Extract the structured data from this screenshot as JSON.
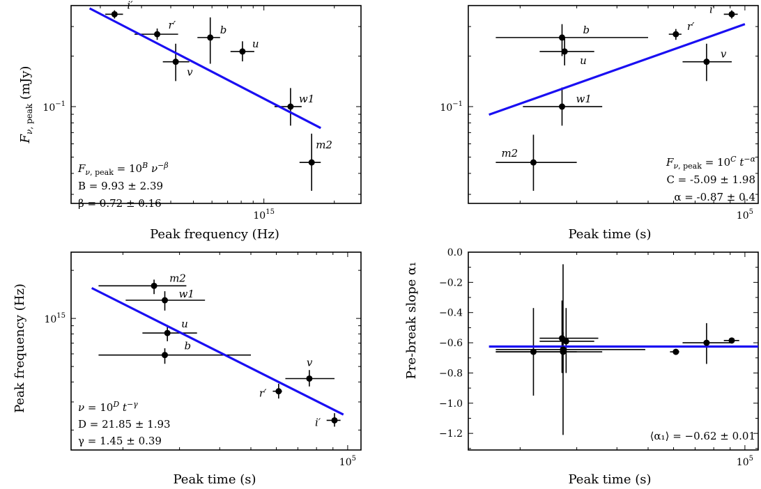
{
  "chart_data": [
    {
      "type": "scatter",
      "xlabel": "Peak frequency (Hz)",
      "ylabel": "F_{ν, peak} (mJy)",
      "xscale": "log",
      "yscale": "log",
      "xlim": [
        150000000000000.0,
        2600000000000000.0
      ],
      "ylim": [
        0.0265,
        0.4
      ],
      "xticks": [
        {
          "v": 1000000000000000.0,
          "label": "10^15"
        }
      ],
      "yticks": [
        {
          "v": 0.1,
          "label": "10^-1"
        }
      ],
      "points": [
        {
          "label": "i′",
          "x": 230000000000000.0,
          "y": 0.355,
          "xlo": 210000000000000.0,
          "xhi": 250000000000000.0,
          "ylo": 0.335,
          "yhi": 0.375
        },
        {
          "label": "r′",
          "x": 350000000000000.0,
          "y": 0.27,
          "xlo": 280000000000000.0,
          "xhi": 430000000000000.0,
          "ylo": 0.25,
          "yhi": 0.292
        },
        {
          "label": "v",
          "x": 420000000000000.0,
          "y": 0.185,
          "xlo": 370000000000000.0,
          "xhi": 480000000000000.0,
          "ylo": 0.142,
          "yhi": 0.237
        },
        {
          "label": "b",
          "x": 590000000000000.0,
          "y": 0.258,
          "xlo": 520000000000000.0,
          "xhi": 650000000000000.0,
          "ylo": 0.18,
          "yhi": 0.34
        },
        {
          "label": "u",
          "x": 810000000000000.0,
          "y": 0.213,
          "xlo": 720000000000000.0,
          "xhi": 910000000000000.0,
          "ylo": 0.186,
          "yhi": 0.245
        },
        {
          "label": "w1",
          "x": 1300000000000000.0,
          "y": 0.1,
          "xlo": 1110000000000000.0,
          "xhi": 1450000000000000.0,
          "ylo": 0.077,
          "yhi": 0.129
        },
        {
          "label": "m2",
          "x": 1600000000000000.0,
          "y": 0.0465,
          "xlo": 1420000000000000.0,
          "xhi": 1750000000000000.0,
          "ylo": 0.0315,
          "yhi": 0.069
        }
      ],
      "fit": {
        "x": [
          180000000000000.0,
          1750000000000000.0
        ],
        "y": [
          0.385,
          0.0745
        ]
      },
      "annotations": [
        "F_{ν, peak} = 10^B ν^{-β}",
        "B = 9.93 ± 2.39",
        "β = 0.72 ± 0.16"
      ]
    },
    {
      "type": "scatter",
      "xlabel": "Peak time (s)",
      "ylabel": "",
      "xscale": "log",
      "yscale": "log",
      "xlim": [
        13800,
        110000
      ],
      "ylim": [
        0.0265,
        0.4
      ],
      "xticks": [
        {
          "v": 100000,
          "label": "10^5"
        }
      ],
      "yticks": [
        {
          "v": 0.1,
          "label": "10^-1"
        }
      ],
      "points": [
        {
          "label": "b",
          "x": 27000,
          "y": 0.258,
          "xlo": 16800,
          "xhi": 50000,
          "ylo": 0.2,
          "yhi": 0.31
        },
        {
          "label": "u",
          "x": 27500,
          "y": 0.213,
          "xlo": 23000,
          "xhi": 34000,
          "ylo": 0.176,
          "yhi": 0.257
        },
        {
          "label": "w1",
          "x": 27000,
          "y": 0.1,
          "xlo": 20400,
          "xhi": 36000,
          "ylo": 0.077,
          "yhi": 0.13
        },
        {
          "label": "m2",
          "x": 22000,
          "y": 0.0465,
          "xlo": 16800,
          "xhi": 30000,
          "ylo": 0.0315,
          "yhi": 0.068
        },
        {
          "label": "r′",
          "x": 61000,
          "y": 0.27,
          "xlo": 58000,
          "xhi": 63500,
          "ylo": 0.25,
          "yhi": 0.29
        },
        {
          "label": "v",
          "x": 76000,
          "y": 0.185,
          "xlo": 64000,
          "xhi": 91000,
          "ylo": 0.142,
          "yhi": 0.237
        },
        {
          "label": "i′",
          "x": 91000,
          "y": 0.355,
          "xlo": 86000,
          "xhi": 95000,
          "ylo": 0.335,
          "yhi": 0.375
        }
      ],
      "fit": {
        "x": [
          16000,
          100000
        ],
        "y": [
          0.0895,
          0.31
        ]
      },
      "annotations": [
        "F_{ν, peak} = 10^C t^{-α}",
        "C = -5.09 ± 1.98",
        "α = -0.87 ± 0.4"
      ]
    },
    {
      "type": "scatter",
      "xlabel": "Peak time (s)",
      "ylabel": "Peak frequency (Hz)",
      "xscale": "log",
      "yscale": "log",
      "xlim": [
        13800,
        110000
      ],
      "ylim": [
        150000000000000.0,
        2600000000000000.0
      ],
      "xticks": [
        {
          "v": 100000,
          "label": "10^5"
        }
      ],
      "yticks": [
        {
          "v": 1000000000000000.0,
          "label": "10^15"
        }
      ],
      "points": [
        {
          "label": "m2",
          "x": 25000,
          "y": 1600000000000000.0,
          "xlo": 16800,
          "xhi": 31500,
          "ylo": 1420000000000000.0,
          "yhi": 1750000000000000.0
        },
        {
          "label": "w1",
          "x": 27000,
          "y": 1300000000000000.0,
          "xlo": 20400,
          "xhi": 36000,
          "ylo": 1120000000000000.0,
          "yhi": 1480000000000000.0
        },
        {
          "label": "u",
          "x": 27500,
          "y": 810000000000000.0,
          "xlo": 23000,
          "xhi": 34000,
          "ylo": 720000000000000.0,
          "yhi": 910000000000000.0
        },
        {
          "label": "b",
          "x": 27000,
          "y": 590000000000000.0,
          "xlo": 16800,
          "xhi": 50000,
          "ylo": 520000000000000.0,
          "yhi": 650000000000000.0
        },
        {
          "label": "v",
          "x": 76000,
          "y": 420000000000000.0,
          "xlo": 64000,
          "xhi": 91000,
          "ylo": 375000000000000.0,
          "yhi": 475000000000000.0
        },
        {
          "label": "r′",
          "x": 61000,
          "y": 350000000000000.0,
          "xlo": 58500,
          "xhi": 62500,
          "ylo": 315000000000000.0,
          "yhi": 390000000000000.0
        },
        {
          "label": "i′",
          "x": 91000,
          "y": 230000000000000.0,
          "xlo": 86000,
          "xhi": 95000,
          "ylo": 210000000000000.0,
          "yhi": 255000000000000.0
        }
      ],
      "fit": {
        "x": [
          16000,
          97000
        ],
        "y": [
          1550000000000000.0,
          250000000000000.0
        ]
      },
      "annotations": [
        "ν = 10^D t^{-γ}",
        "D = 21.85 ± 1.93",
        "γ = 1.45 ± 0.39"
      ]
    },
    {
      "type": "scatter",
      "xlabel": "Peak time (s)",
      "ylabel": "Pre-break slope α₁",
      "xscale": "log",
      "yscale": "linear",
      "xlim": [
        13800,
        110000
      ],
      "ylim": [
        -1.31,
        0.0
      ],
      "xticks": [
        {
          "v": 100000,
          "label": "10^5"
        }
      ],
      "yticks": [
        {
          "v": 0.0,
          "label": "0.0"
        },
        {
          "v": -0.2,
          "label": "−0.2"
        },
        {
          "v": -0.4,
          "label": "−0.4"
        },
        {
          "v": -0.6,
          "label": "−0.6"
        },
        {
          "v": -0.8,
          "label": "−0.8"
        },
        {
          "v": -1.0,
          "label": "−1.0"
        },
        {
          "v": -1.2,
          "label": "−1.2"
        }
      ],
      "points": [
        {
          "label": "",
          "x": 22000,
          "y": -0.66,
          "xlo": 16800,
          "xhi": 30000,
          "ylo": -0.95,
          "yhi": -0.37
        },
        {
          "label": "",
          "x": 27000,
          "y": -0.57,
          "xlo": 23000,
          "xhi": 35000,
          "ylo": -0.8,
          "yhi": -0.32
        },
        {
          "label": "",
          "x": 27200,
          "y": -0.645,
          "xlo": 16800,
          "xhi": 49000,
          "ylo": -1.21,
          "yhi": -0.08
        },
        {
          "label": "",
          "x": 27800,
          "y": -0.59,
          "xlo": 23000,
          "xhi": 34000,
          "ylo": -0.8,
          "yhi": -0.37
        },
        {
          "label": "",
          "x": 27200,
          "y": -0.66,
          "xlo": 16800,
          "xhi": 36000,
          "ylo": -0.8,
          "yhi": -0.53
        },
        {
          "label": "",
          "x": 61000,
          "y": -0.66,
          "xlo": 58500,
          "xhi": 62500,
          "ylo": -0.675,
          "yhi": -0.645
        },
        {
          "label": "",
          "x": 76000,
          "y": -0.6,
          "xlo": 64000,
          "xhi": 91000,
          "ylo": -0.74,
          "yhi": -0.47
        },
        {
          "label": "",
          "x": 91000,
          "y": -0.585,
          "xlo": 86000,
          "xhi": 96000,
          "ylo": -0.6,
          "yhi": -0.57
        }
      ],
      "fit": {
        "x": [
          16000,
          110000
        ],
        "y": [
          -0.625,
          -0.625
        ]
      },
      "annotations": [
        "⟨α₁⟩ = −0.62 ± 0.01"
      ]
    }
  ]
}
